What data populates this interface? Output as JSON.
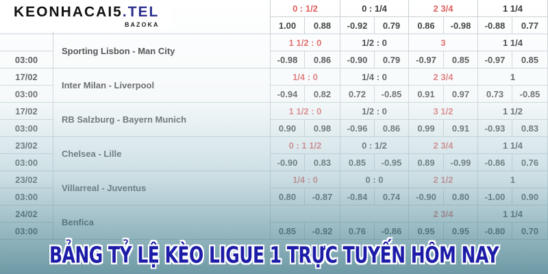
{
  "logo": {
    "brand_main": "KEONHACAI5",
    "brand_tld": ".TEL",
    "brand_sub": "BAZOKA"
  },
  "banner": {
    "title": "BẢNG TỶ LỆ KÈO LIGUE 1 TRỰC TUYẾN HÔM NAY"
  },
  "colors": {
    "favorite_handicap": "#e05a5a",
    "text": "#333333",
    "border": "#c9cfd3",
    "title": "#1c1ca8"
  },
  "matches": [
    {
      "date": "",
      "time": "",
      "name": "",
      "lines": [
        "0 : 1/2",
        "0 : 1/4",
        "2 3/4",
        "1 1/4"
      ],
      "fav": [
        true,
        false,
        true,
        false
      ],
      "odds": [
        "1.00",
        "0.88",
        "-0.92",
        "0.79",
        "0.86",
        "-0.98",
        "-0.88",
        "0.77"
      ]
    },
    {
      "date": "",
      "time": "03:00",
      "name": "Sporting Lisbon - Man City",
      "lines": [
        "1 1/2 : 0",
        "1/2 : 0",
        "3",
        "1 1/4"
      ],
      "fav": [
        true,
        false,
        true,
        false
      ],
      "odds": [
        "-0.98",
        "0.86",
        "-0.90",
        "0.79",
        "-0.97",
        "0.85",
        "-0.97",
        "0.85"
      ]
    },
    {
      "date": "17/02",
      "time": "03:00",
      "name": "Inter Milan - Liverpool",
      "lines": [
        "1/4 : 0",
        "1/4 : 0",
        "2 3/4",
        "1"
      ],
      "fav": [
        true,
        false,
        true,
        false
      ],
      "odds": [
        "-0.94",
        "0.82",
        "0.72",
        "-0.85",
        "0.91",
        "0.97",
        "0.73",
        "-0.85"
      ]
    },
    {
      "date": "17/02",
      "time": "03:00",
      "name": "RB Salzburg - Bayern Munich",
      "lines": [
        "1 1/2 : 0",
        "1/2 : 0",
        "3 1/2",
        "1 1/2"
      ],
      "fav": [
        true,
        false,
        true,
        false
      ],
      "odds": [
        "0.90",
        "0.98",
        "-0.96",
        "0.86",
        "0.99",
        "0.91",
        "-0.93",
        "0.83"
      ]
    },
    {
      "date": "23/02",
      "time": "03:00",
      "name": "Chelsea - Lille",
      "lines": [
        "0 : 1 1/2",
        "0 : 1/2",
        "2 3/4",
        "1 1/4"
      ],
      "fav": [
        true,
        false,
        true,
        false
      ],
      "odds": [
        "-0.90",
        "0.83",
        "0.85",
        "-0.95",
        "0.89",
        "-0.99",
        "-0.86",
        "0.76"
      ]
    },
    {
      "date": "23/02",
      "time": "03:00",
      "name": "Villarreal - Juventus",
      "lines": [
        "1/4 : 0",
        "0 : 0",
        "2 1/2",
        "1"
      ],
      "fav": [
        true,
        false,
        true,
        false
      ],
      "odds": [
        "0.80",
        "-0.87",
        "-0.84",
        "0.74",
        "-0.90",
        "0.80",
        "-1.00",
        "0.90"
      ]
    },
    {
      "date": "24/02",
      "time": "03:00",
      "name": "Benfica",
      "lines": [
        "",
        "",
        "2 3/4",
        "1 1/4"
      ],
      "fav": [
        true,
        false,
        true,
        false
      ],
      "odds": [
        "0.85",
        "-0.92",
        "0.76",
        "-0.86",
        "0.95",
        "0.95",
        "-0.80",
        "0.70"
      ]
    }
  ]
}
